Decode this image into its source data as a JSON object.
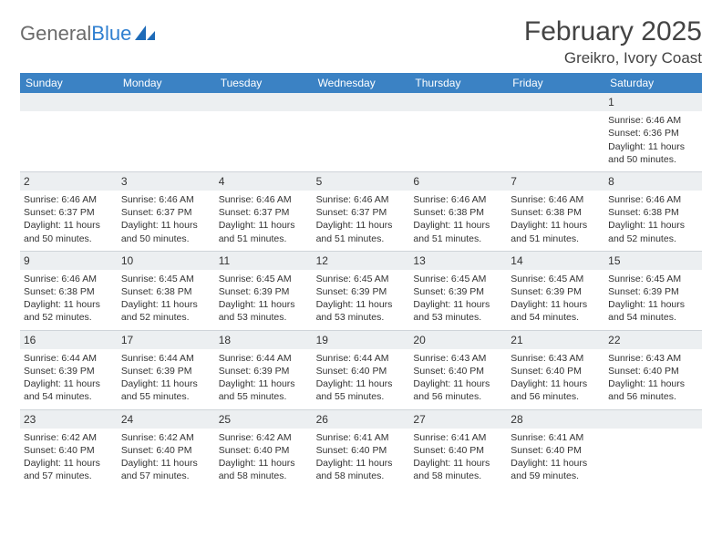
{
  "brand": {
    "word1": "General",
    "word2": "Blue"
  },
  "title": "February 2025",
  "location": "Greikro, Ivory Coast",
  "colors": {
    "header_bg": "#3b82c4",
    "header_fg": "#ffffff",
    "daynum_bg": "#eceff1",
    "border": "#cfd4d9",
    "text": "#333333",
    "brand_gray": "#6b6b6b",
    "brand_blue": "#2f7fd0"
  },
  "day_headers": [
    "Sunday",
    "Monday",
    "Tuesday",
    "Wednesday",
    "Thursday",
    "Friday",
    "Saturday"
  ],
  "weeks": [
    [
      null,
      null,
      null,
      null,
      null,
      null,
      {
        "n": "1",
        "sr": "Sunrise: 6:46 AM",
        "ss": "Sunset: 6:36 PM",
        "d1": "Daylight: 11 hours",
        "d2": "and 50 minutes."
      }
    ],
    [
      {
        "n": "2",
        "sr": "Sunrise: 6:46 AM",
        "ss": "Sunset: 6:37 PM",
        "d1": "Daylight: 11 hours",
        "d2": "and 50 minutes."
      },
      {
        "n": "3",
        "sr": "Sunrise: 6:46 AM",
        "ss": "Sunset: 6:37 PM",
        "d1": "Daylight: 11 hours",
        "d2": "and 50 minutes."
      },
      {
        "n": "4",
        "sr": "Sunrise: 6:46 AM",
        "ss": "Sunset: 6:37 PM",
        "d1": "Daylight: 11 hours",
        "d2": "and 51 minutes."
      },
      {
        "n": "5",
        "sr": "Sunrise: 6:46 AM",
        "ss": "Sunset: 6:37 PM",
        "d1": "Daylight: 11 hours",
        "d2": "and 51 minutes."
      },
      {
        "n": "6",
        "sr": "Sunrise: 6:46 AM",
        "ss": "Sunset: 6:38 PM",
        "d1": "Daylight: 11 hours",
        "d2": "and 51 minutes."
      },
      {
        "n": "7",
        "sr": "Sunrise: 6:46 AM",
        "ss": "Sunset: 6:38 PM",
        "d1": "Daylight: 11 hours",
        "d2": "and 51 minutes."
      },
      {
        "n": "8",
        "sr": "Sunrise: 6:46 AM",
        "ss": "Sunset: 6:38 PM",
        "d1": "Daylight: 11 hours",
        "d2": "and 52 minutes."
      }
    ],
    [
      {
        "n": "9",
        "sr": "Sunrise: 6:46 AM",
        "ss": "Sunset: 6:38 PM",
        "d1": "Daylight: 11 hours",
        "d2": "and 52 minutes."
      },
      {
        "n": "10",
        "sr": "Sunrise: 6:45 AM",
        "ss": "Sunset: 6:38 PM",
        "d1": "Daylight: 11 hours",
        "d2": "and 52 minutes."
      },
      {
        "n": "11",
        "sr": "Sunrise: 6:45 AM",
        "ss": "Sunset: 6:39 PM",
        "d1": "Daylight: 11 hours",
        "d2": "and 53 minutes."
      },
      {
        "n": "12",
        "sr": "Sunrise: 6:45 AM",
        "ss": "Sunset: 6:39 PM",
        "d1": "Daylight: 11 hours",
        "d2": "and 53 minutes."
      },
      {
        "n": "13",
        "sr": "Sunrise: 6:45 AM",
        "ss": "Sunset: 6:39 PM",
        "d1": "Daylight: 11 hours",
        "d2": "and 53 minutes."
      },
      {
        "n": "14",
        "sr": "Sunrise: 6:45 AM",
        "ss": "Sunset: 6:39 PM",
        "d1": "Daylight: 11 hours",
        "d2": "and 54 minutes."
      },
      {
        "n": "15",
        "sr": "Sunrise: 6:45 AM",
        "ss": "Sunset: 6:39 PM",
        "d1": "Daylight: 11 hours",
        "d2": "and 54 minutes."
      }
    ],
    [
      {
        "n": "16",
        "sr": "Sunrise: 6:44 AM",
        "ss": "Sunset: 6:39 PM",
        "d1": "Daylight: 11 hours",
        "d2": "and 54 minutes."
      },
      {
        "n": "17",
        "sr": "Sunrise: 6:44 AM",
        "ss": "Sunset: 6:39 PM",
        "d1": "Daylight: 11 hours",
        "d2": "and 55 minutes."
      },
      {
        "n": "18",
        "sr": "Sunrise: 6:44 AM",
        "ss": "Sunset: 6:39 PM",
        "d1": "Daylight: 11 hours",
        "d2": "and 55 minutes."
      },
      {
        "n": "19",
        "sr": "Sunrise: 6:44 AM",
        "ss": "Sunset: 6:40 PM",
        "d1": "Daylight: 11 hours",
        "d2": "and 55 minutes."
      },
      {
        "n": "20",
        "sr": "Sunrise: 6:43 AM",
        "ss": "Sunset: 6:40 PM",
        "d1": "Daylight: 11 hours",
        "d2": "and 56 minutes."
      },
      {
        "n": "21",
        "sr": "Sunrise: 6:43 AM",
        "ss": "Sunset: 6:40 PM",
        "d1": "Daylight: 11 hours",
        "d2": "and 56 minutes."
      },
      {
        "n": "22",
        "sr": "Sunrise: 6:43 AM",
        "ss": "Sunset: 6:40 PM",
        "d1": "Daylight: 11 hours",
        "d2": "and 56 minutes."
      }
    ],
    [
      {
        "n": "23",
        "sr": "Sunrise: 6:42 AM",
        "ss": "Sunset: 6:40 PM",
        "d1": "Daylight: 11 hours",
        "d2": "and 57 minutes."
      },
      {
        "n": "24",
        "sr": "Sunrise: 6:42 AM",
        "ss": "Sunset: 6:40 PM",
        "d1": "Daylight: 11 hours",
        "d2": "and 57 minutes."
      },
      {
        "n": "25",
        "sr": "Sunrise: 6:42 AM",
        "ss": "Sunset: 6:40 PM",
        "d1": "Daylight: 11 hours",
        "d2": "and 58 minutes."
      },
      {
        "n": "26",
        "sr": "Sunrise: 6:41 AM",
        "ss": "Sunset: 6:40 PM",
        "d1": "Daylight: 11 hours",
        "d2": "and 58 minutes."
      },
      {
        "n": "27",
        "sr": "Sunrise: 6:41 AM",
        "ss": "Sunset: 6:40 PM",
        "d1": "Daylight: 11 hours",
        "d2": "and 58 minutes."
      },
      {
        "n": "28",
        "sr": "Sunrise: 6:41 AM",
        "ss": "Sunset: 6:40 PM",
        "d1": "Daylight: 11 hours",
        "d2": "and 59 minutes."
      },
      null
    ]
  ]
}
